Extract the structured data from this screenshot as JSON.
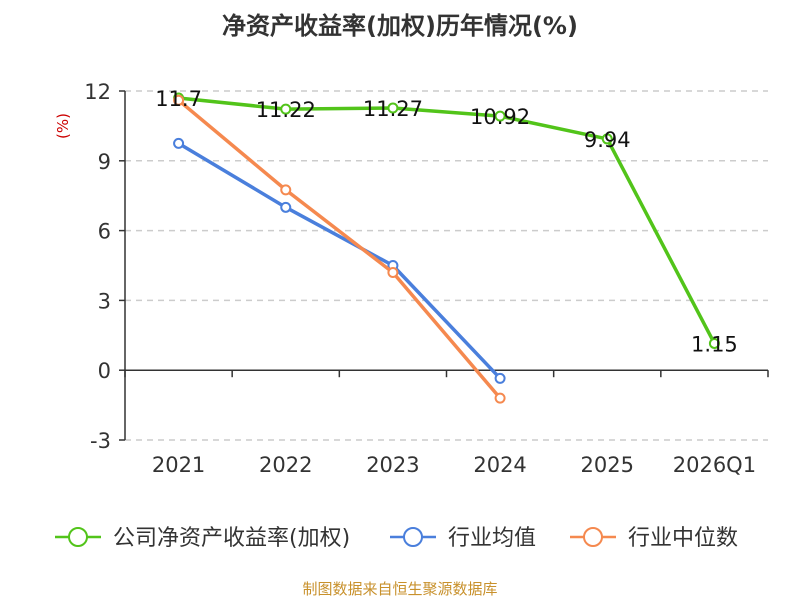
{
  "chart_data": {
    "type": "line",
    "title": "净资产收益率(加权)历年情况(%)",
    "ylabel": "(%)",
    "xlabel": "",
    "categories": [
      "2021",
      "2022",
      "2023",
      "2024",
      "2025",
      "2026Q1"
    ],
    "ylim": [
      -3,
      12
    ],
    "yticks": [
      -3,
      0,
      3,
      6,
      9,
      12
    ],
    "grid": true,
    "legend_position": "bottom",
    "series": [
      {
        "name": "公司净资产收益率(加权)",
        "color": "#52c41a",
        "values": [
          11.7,
          11.22,
          11.27,
          10.92,
          9.94,
          1.15
        ],
        "labels": [
          "11.7",
          "11.22",
          "11.27",
          "10.92",
          "9.94",
          "1.15"
        ]
      },
      {
        "name": "行业均值",
        "color": "#4a7fdc",
        "values": [
          9.75,
          7.0,
          4.5,
          -0.35,
          null,
          null
        ]
      },
      {
        "name": "行业中位数",
        "color": "#f5894f",
        "values": [
          11.6,
          7.75,
          4.2,
          -1.2,
          null,
          null
        ]
      }
    ],
    "source": "制图数据来自恒生聚源数据库"
  }
}
